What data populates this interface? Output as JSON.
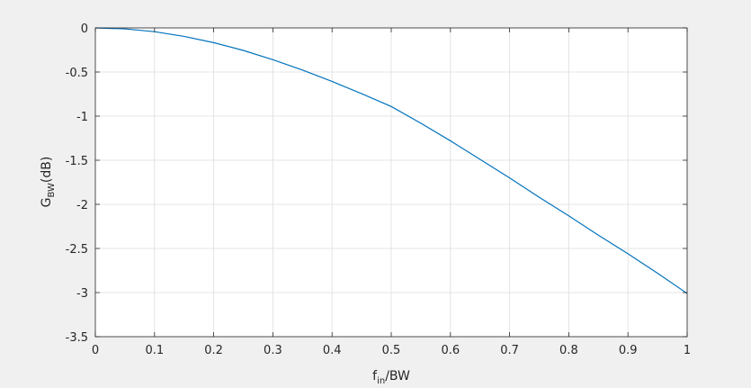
{
  "chart_data": {
    "type": "line",
    "title": "",
    "xlabel": {
      "main": "f",
      "sub": "in",
      "rest": "/BW"
    },
    "ylabel": {
      "main": "G",
      "sub": "BW",
      "rest": "(dB)"
    },
    "xlim": [
      0,
      1
    ],
    "ylim": [
      -3.5,
      0
    ],
    "xticks": [
      0,
      0.1,
      0.2,
      0.3,
      0.4,
      0.5,
      0.6,
      0.7,
      0.8,
      0.9,
      1
    ],
    "xtick_labels": [
      "0",
      "0.1",
      "0.2",
      "0.3",
      "0.4",
      "0.5",
      "0.6",
      "0.7",
      "0.8",
      "0.9",
      "1"
    ],
    "yticks": [
      0,
      -0.5,
      -1,
      -1.5,
      -2,
      -2.5,
      -3,
      -3.5
    ],
    "ytick_labels": [
      "0",
      "-0.5",
      "-1",
      "-1.5",
      "-2",
      "-2.5",
      "-3",
      "-3.5"
    ],
    "grid": true,
    "legend": "none",
    "series": [
      {
        "color": "#0072bd",
        "x": [
          0,
          0.05,
          0.1,
          0.15,
          0.2,
          0.25,
          0.3,
          0.35,
          0.4,
          0.45,
          0.5,
          0.55,
          0.6,
          0.65,
          0.7,
          0.75,
          0.8,
          0.85,
          0.9,
          0.95,
          1
        ],
        "y": [
          0,
          -0.011,
          -0.043,
          -0.096,
          -0.167,
          -0.255,
          -0.36,
          -0.478,
          -0.607,
          -0.746,
          -0.891,
          -1.08,
          -1.28,
          -1.49,
          -1.7,
          -1.92,
          -2.13,
          -2.35,
          -2.56,
          -2.78,
          -3.01
        ]
      }
    ]
  }
}
